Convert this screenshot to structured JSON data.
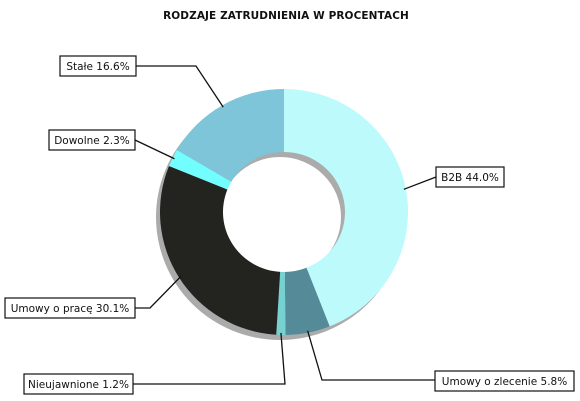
{
  "chart_data": {
    "type": "pie",
    "variant": "donut",
    "title": "RODZAJE ZATRUDNIENIA W PROCENTACH",
    "slices": [
      {
        "name": "B2B",
        "value": 44.0,
        "label": "B2B 44.0%",
        "color": "#bdfafc"
      },
      {
        "name": "Umowy o zlecenie",
        "value": 5.8,
        "label": "Umowy o zlecenie 5.8%",
        "color": "#558b98"
      },
      {
        "name": "Nieujawnione",
        "value": 1.2,
        "label": "Nieujawnione 1.2%",
        "color": "#76d1d1"
      },
      {
        "name": "Umowy o pracę",
        "value": 30.1,
        "label": "Umowy o pracę 30.1%",
        "color": "#232320"
      },
      {
        "name": "Dowolne",
        "value": 2.3,
        "label": "Dowolne 2.3%",
        "color": "#72feff"
      },
      {
        "name": "Stałe",
        "value": 16.6,
        "label": "Stałe 16.6%",
        "color": "#7ec5d9"
      }
    ],
    "legend": "none",
    "label_style": "boxed-callouts"
  }
}
